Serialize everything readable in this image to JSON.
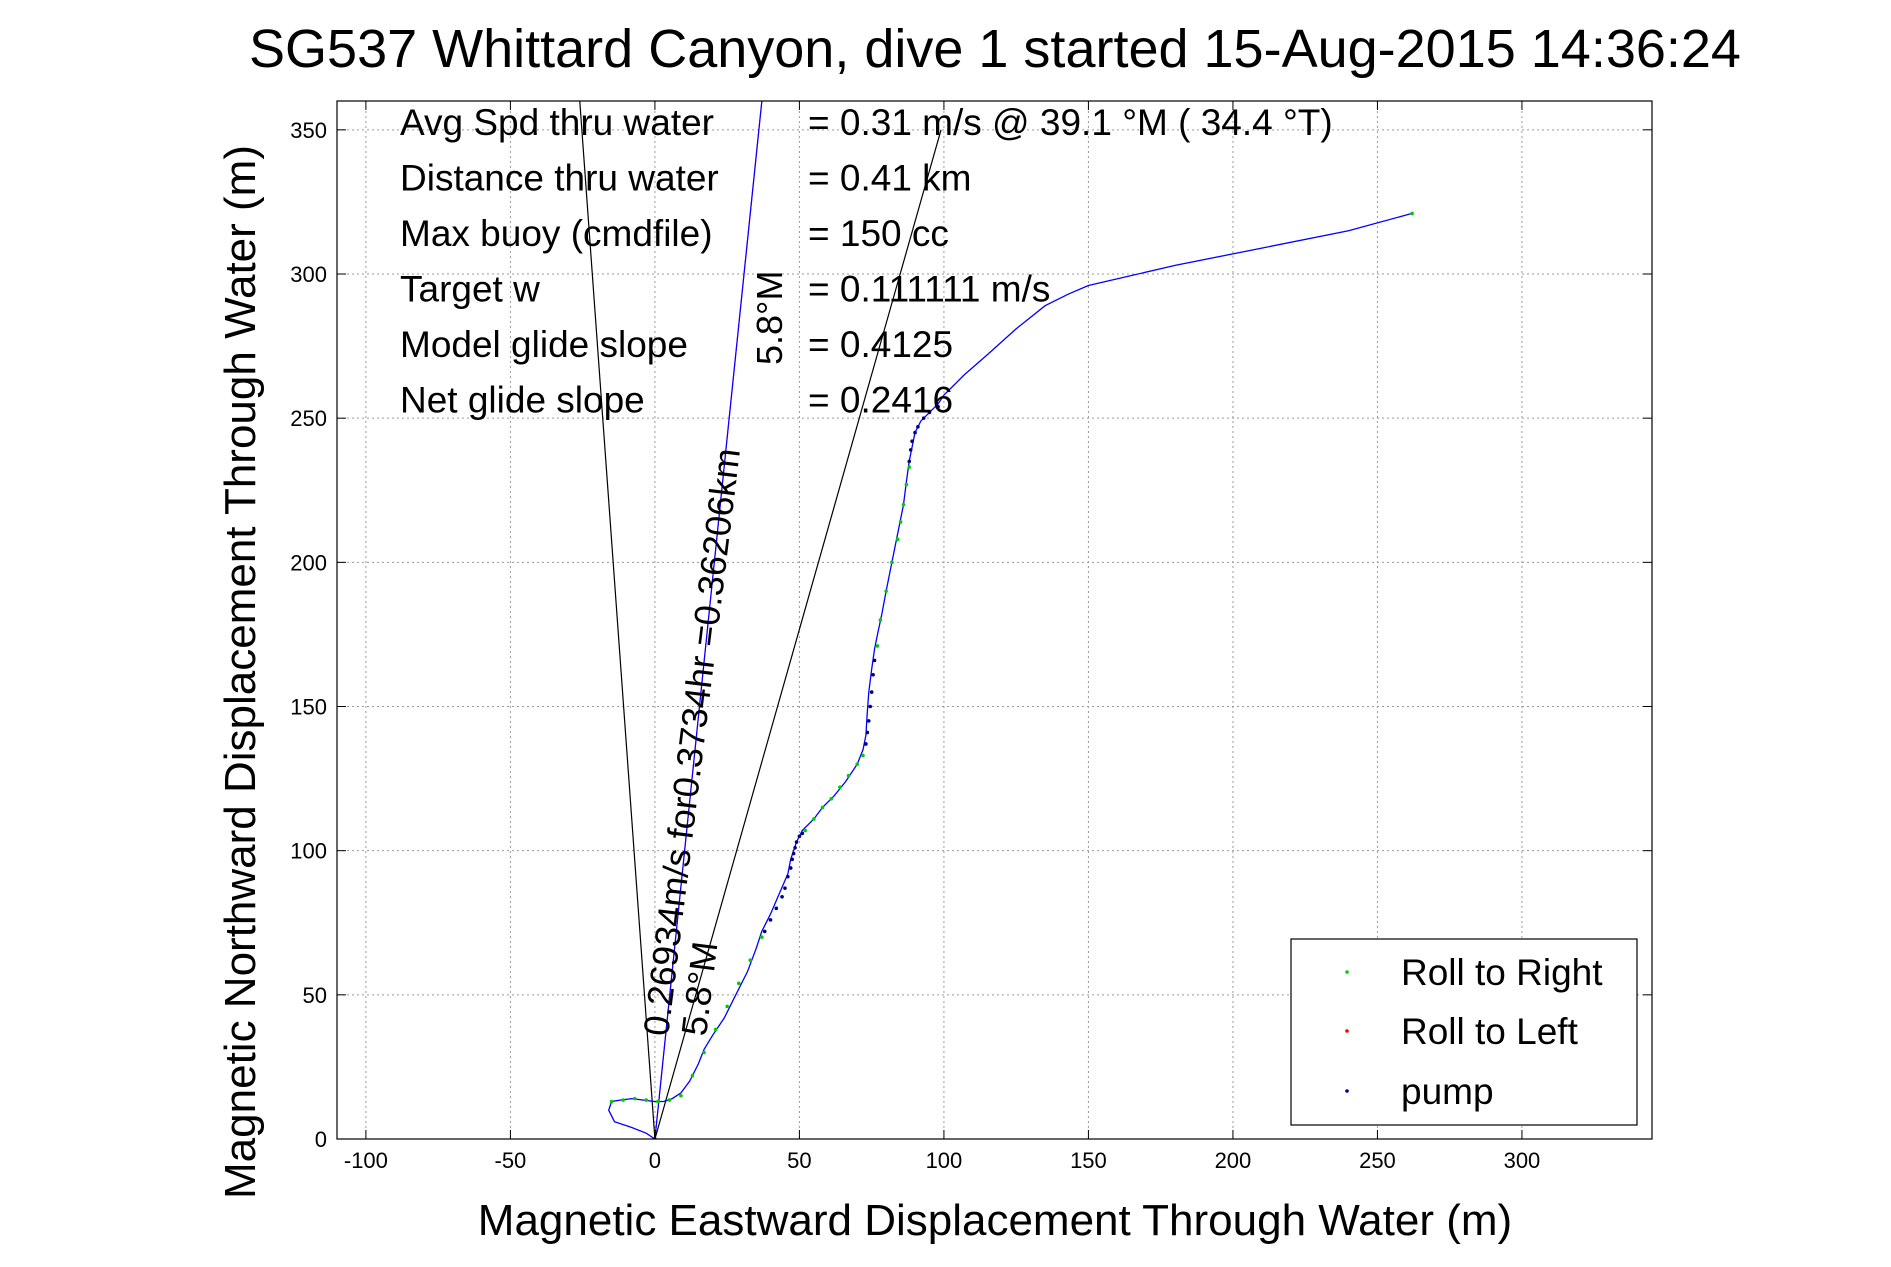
{
  "chart_data": {
    "type": "line",
    "title": "SG537 Whittard Canyon, dive 1 started 15-Aug-2015 14:36:24",
    "xlabel": "Magnetic Eastward Displacement Through Water (m)",
    "ylabel": "Magnetic Northward Displacement Through Water (m)",
    "xlim": [
      -110,
      345
    ],
    "ylim": [
      0,
      360
    ],
    "xticks": [
      -100,
      -50,
      0,
      50,
      100,
      150,
      200,
      250,
      300
    ],
    "yticks": [
      0,
      50,
      100,
      150,
      200,
      250,
      300,
      350
    ],
    "grid": true,
    "info_lines": [
      {
        "label": "Avg Spd thru water",
        "value": "=  0.31 m/s @  39.1 °M ( 34.4 °T)"
      },
      {
        "label": "Distance thru water",
        "value": "=  0.41 km"
      },
      {
        "label": "Max buoy (cmdfile)",
        "value": "= 150 cc"
      },
      {
        "label": "Target w",
        "value": "= 0.111111 m/s"
      },
      {
        "label": "Model glide slope",
        "value": "= 0.4125"
      },
      {
        "label": "Net glide slope",
        "value": "= 0.2416"
      }
    ],
    "annotations": {
      "current_text": "0.26934m/s for0.3734hr =0.36206km",
      "heading_text_1": "5.8°M",
      "heading_text_2": "5.8°M"
    },
    "legend": {
      "position": "bottom-right",
      "entries": [
        {
          "label": "Roll to Right",
          "color": "#00cc00"
        },
        {
          "label": "Roll to Left",
          "color": "#ff0000"
        },
        {
          "label": "pump",
          "color": "#000080"
        }
      ]
    },
    "reference_lines": [
      {
        "name": "heading-line",
        "color": "#ff00ff",
        "x": [
          0,
          37
        ],
        "y": [
          0,
          360
        ]
      },
      {
        "name": "current-line",
        "color": "#0000ff",
        "x": [
          0,
          37
        ],
        "y": [
          0,
          360
        ]
      },
      {
        "name": "wedge-left",
        "color": "#000000",
        "x": [
          0,
          -26
        ],
        "y": [
          0,
          360
        ]
      },
      {
        "name": "wedge-right",
        "color": "#000000",
        "x": [
          0,
          99
        ],
        "y": [
          0,
          350
        ]
      }
    ],
    "series": [
      {
        "name": "track",
        "color": "#0000ff",
        "x": [
          0,
          -3,
          -8,
          -14,
          -16,
          -15,
          -12,
          -8,
          -4,
          0,
          3,
          6,
          9,
          12,
          15,
          17,
          20,
          24,
          28,
          32,
          35,
          37,
          40,
          43,
          46,
          47,
          48,
          49,
          50,
          51,
          52,
          55,
          58,
          62,
          66,
          70,
          72,
          73,
          73.5,
          74,
          75,
          76,
          77,
          78.5,
          80,
          82,
          84,
          86,
          87,
          88,
          89,
          90,
          92,
          95,
          98,
          100,
          103,
          107,
          115,
          125,
          135,
          143,
          150,
          180,
          210,
          240,
          262
        ],
        "y": [
          0,
          2,
          4,
          6,
          10,
          13,
          13.5,
          14,
          13.5,
          13,
          13,
          14,
          16,
          20,
          26,
          31,
          36,
          42,
          50,
          58,
          66,
          72,
          78,
          85,
          92,
          97,
          100,
          103,
          105,
          107,
          108,
          111,
          115,
          119,
          124,
          130,
          135,
          140,
          148,
          155,
          163,
          170,
          175,
          182,
          190,
          200,
          210,
          220,
          228,
          235,
          240,
          245,
          249,
          252,
          255,
          258,
          261,
          265,
          272,
          281,
          289,
          293,
          296,
          303,
          309,
          315,
          321
        ]
      }
    ],
    "markers": {
      "roll_right": {
        "x": [
          -15,
          -11,
          -7,
          -3,
          1,
          5,
          9,
          13,
          17,
          21,
          25,
          29,
          33,
          37,
          52,
          55,
          58,
          61,
          64,
          67,
          70,
          72,
          77,
          78,
          80,
          82,
          84,
          85,
          86,
          87,
          88,
          262
        ],
        "y": [
          13,
          13.5,
          14,
          13.5,
          13,
          13.5,
          15,
          22,
          30,
          38,
          46,
          54,
          62,
          70,
          107,
          111,
          115,
          118,
          122,
          126,
          130,
          133,
          171,
          180,
          190,
          200,
          208,
          214,
          220,
          227,
          233,
          321
        ]
      },
      "roll_left": {
        "x": [],
        "y": []
      },
      "pump": {
        "x": [
          0,
          38,
          40,
          42,
          44,
          45,
          46,
          47,
          47.5,
          48,
          48.5,
          49,
          50,
          51,
          73,
          73.5,
          74,
          74.5,
          75,
          75.5,
          76,
          88,
          88.5,
          89,
          90,
          91,
          93,
          95,
          98
        ],
        "y": [
          0,
          72,
          76,
          80,
          84,
          87,
          91,
          94,
          97,
          99,
          101,
          103,
          105,
          106,
          137,
          141,
          145,
          150,
          155,
          161,
          166,
          235,
          239,
          242,
          245,
          247,
          250,
          252,
          254
        ]
      }
    }
  }
}
